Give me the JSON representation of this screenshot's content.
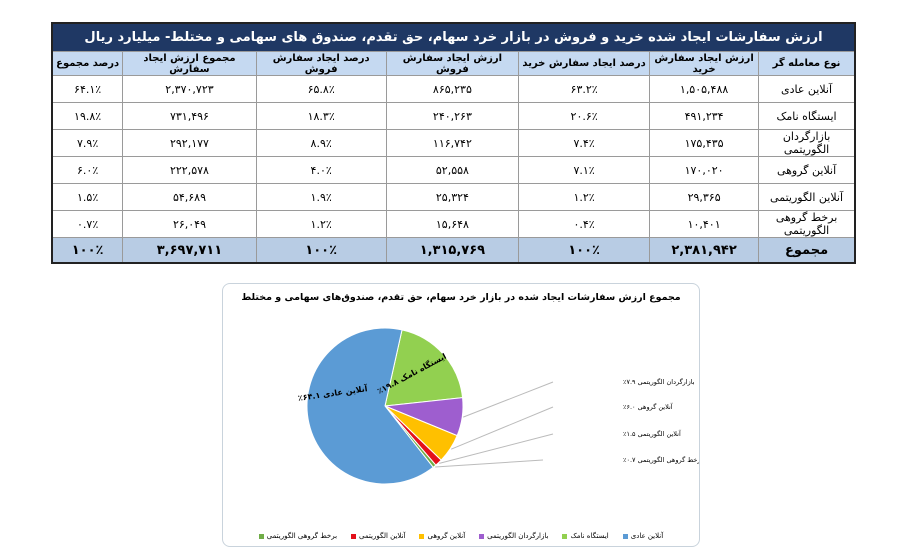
{
  "table": {
    "title": "ارزش سفارشات ایجاد شده خرید و فروش در بازار خرد سهام، حق تقدم، صندوق های سهامی و مختلط- میلیارد ریال",
    "headers": [
      "نوع معامله گر",
      "ارزش ایجاد سفارش خرید",
      "درصد ایجاد سفارش خرید",
      "ارزش ایجاد سفارش فروش",
      "درصد ایجاد سفارش فروش",
      "مجموع ارزش ایجاد سفارش",
      "درصد مجموع"
    ],
    "rows": [
      [
        "آنلاین عادی",
        "۱,۵۰۵,۴۸۸",
        "۶۳.۲٪",
        "۸۶۵,۲۳۵",
        "۶۵.۸٪",
        "۲,۳۷۰,۷۲۳",
        "۶۴.۱٪"
      ],
      [
        "ایستگاه نامک",
        "۴۹۱,۲۳۴",
        "۲۰.۶٪",
        "۲۴۰,۲۶۳",
        "۱۸.۳٪",
        "۷۳۱,۴۹۶",
        "۱۹.۸٪"
      ],
      [
        "بازارگردان الگوریتمی",
        "۱۷۵,۴۳۵",
        "۷.۴٪",
        "۱۱۶,۷۴۲",
        "۸.۹٪",
        "۲۹۲,۱۷۷",
        "۷.۹٪"
      ],
      [
        "آنلاین گروهی",
        "۱۷۰,۰۲۰",
        "۷.۱٪",
        "۵۲,۵۵۸",
        "۴.۰٪",
        "۲۲۲,۵۷۸",
        "۶.۰٪"
      ],
      [
        "آنلاین الگوریتمی",
        "۲۹,۳۶۵",
        "۱.۲٪",
        "۲۵,۳۲۴",
        "۱.۹٪",
        "۵۴,۶۸۹",
        "۱.۵٪"
      ],
      [
        "برخط گروهی الگوریتمی",
        "۱۰,۴۰۱",
        "۰.۴٪",
        "۱۵,۶۴۸",
        "۱.۲٪",
        "۲۶,۰۴۹",
        "۰.۷٪"
      ]
    ],
    "total": [
      "مجموع",
      "۲,۳۸۱,۹۴۲",
      "۱۰۰٪",
      "۱,۳۱۵,۷۶۹",
      "۱۰۰٪",
      "۳,۶۹۷,۷۱۱",
      "۱۰۰٪"
    ]
  },
  "chart_data": {
    "type": "pie",
    "title": "مجموع ارزش سفارشات ایجاد شده در بازار خرد سهام، حق تقدم، صندوق‌های سهامی و مختلط",
    "categories": [
      "آنلاین عادی",
      "ایستگاه نامک",
      "بازارگردان الگوریتمی",
      "آنلاین گروهی",
      "آنلاین الگوریتمی",
      "برخط گروهی الگوریتمی"
    ],
    "values": [
      64.1,
      19.8,
      7.9,
      6.0,
      1.5,
      0.7
    ],
    "data_labels": [
      "آنلاین عادی ۶۴.۱٪",
      "ایستگاه نامک ۱۹.۸٪",
      "بازارگردان الگوریتمی ۷.۹٪",
      "آنلاین گروهی ۶.۰٪",
      "آنلاین الگوریتمی ۱.۵٪",
      "برخط گروهی الگوریتمی ۰.۷٪"
    ],
    "colors": [
      "#5b9bd5",
      "#92d050",
      "#9e5ecf",
      "#ffc000",
      "#e3101a",
      "#70ad47"
    ],
    "legend_position": "bottom"
  }
}
